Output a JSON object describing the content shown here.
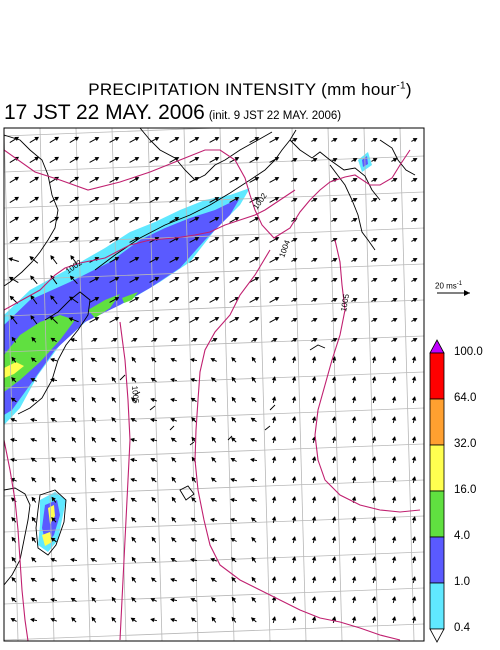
{
  "title": {
    "main_prefix": "PRECIPITATION INTENSITY (mm hour",
    "main_exp": "-1",
    "main_suffix": ")",
    "date": "17 JST 22 MAY. 2006",
    "init": "(init. 9 JST 22 MAY. 2006)"
  },
  "wind_scale": {
    "prefix": "20 ms",
    "exp": "-1"
  },
  "legend": {
    "labels": [
      "100.0",
      "64.0",
      "32.0",
      "16.0",
      "4.0",
      "1.0",
      "0.4"
    ],
    "colors": {
      "extreme": "#c000ff",
      "c64_100": "#ff0000",
      "c32_64": "#ffa030",
      "c16_32": "#ffff50",
      "c4_16": "#60e040",
      "c1_4": "#5a5aff",
      "c04_1": "#60e8ff",
      "below": "#ffffff"
    }
  },
  "isobars": {
    "labels": [
      "1002",
      "1004",
      "1005",
      "1002",
      "1005"
    ],
    "color": "#c02070"
  }
}
